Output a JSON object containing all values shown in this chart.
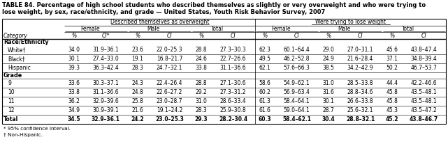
{
  "title_line1": "TABLE 84. Percentage of high school students who described themselves as slightly or very overweight and who were trying to",
  "title_line2": "lose weight, by sex, race/ethnicity, and grade — United States, Youth Risk Behavior Survey, 2007",
  "rows": [
    {
      "label": "White†",
      "indent": true,
      "bold": false,
      "vals": [
        "34.0",
        "31.9–36.1",
        "23.6",
        "22.0–25.3",
        "28.8",
        "27.3–30.3",
        "62.3",
        "60.1–64.4",
        "29.0",
        "27.0–31.1",
        "45.6",
        "43.8–47.4"
      ]
    },
    {
      "label": "Black†",
      "indent": true,
      "bold": false,
      "vals": [
        "30.1",
        "27.4–33.0",
        "19.1",
        "16.8–21.7",
        "24.6",
        "22.7–26.6",
        "49.5",
        "46.2–52.8",
        "24.9",
        "21.6–28.4",
        "37.1",
        "34.8–39.4"
      ]
    },
    {
      "label": "Hispanic",
      "indent": true,
      "bold": false,
      "vals": [
        "39.3",
        "36.3–42.4",
        "28.3",
        "24.7–32.1",
        "33.8",
        "31.1–36.6",
        "62.1",
        "57.6–66.3",
        "38.5",
        "34.2–42.9",
        "50.2",
        "46.7–53.7"
      ]
    },
    {
      "label": "9",
      "indent": true,
      "bold": false,
      "vals": [
        "33.6",
        "30.3–37.1",
        "24.3",
        "22.4–26.4",
        "28.8",
        "27.1–30.6",
        "58.6",
        "54.9–62.1",
        "31.0",
        "28.5–33.8",
        "44.4",
        "42.2–46.6"
      ]
    },
    {
      "label": "10",
      "indent": true,
      "bold": false,
      "vals": [
        "33.8",
        "31.1–36.6",
        "24.8",
        "22.6–27.2",
        "29.2",
        "27.3–31.2",
        "60.2",
        "56.9–63.4",
        "31.6",
        "28.8–34.6",
        "45.8",
        "43.5–48.1"
      ]
    },
    {
      "label": "11",
      "indent": true,
      "bold": false,
      "vals": [
        "36.2",
        "32.9–39.6",
        "25.8",
        "23.0–28.7",
        "31.0",
        "28.6–33.4",
        "61.3",
        "58.4–64.1",
        "30.1",
        "26.6–33.8",
        "45.8",
        "43.5–48.1"
      ]
    },
    {
      "label": "12",
      "indent": true,
      "bold": false,
      "vals": [
        "34.9",
        "30.9–39.1",
        "21.6",
        "19.1–24.2",
        "28.3",
        "25.9–30.8",
        "61.6",
        "59.0–64.1",
        "28.7",
        "25.6–32.1",
        "45.3",
        "43.5–47.2"
      ]
    },
    {
      "label": "Total",
      "indent": false,
      "bold": true,
      "vals": [
        "34.5",
        "32.9–36.1",
        "24.2",
        "23.0–25.3",
        "29.3",
        "28.2–30.4",
        "60.3",
        "58.4–62.1",
        "30.4",
        "28.8–32.1",
        "45.2",
        "43.8–46.7"
      ]
    }
  ],
  "footnotes": [
    "* 95% confidence interval.",
    "† Non-Hispanic."
  ],
  "bg_color": "#ffffff"
}
